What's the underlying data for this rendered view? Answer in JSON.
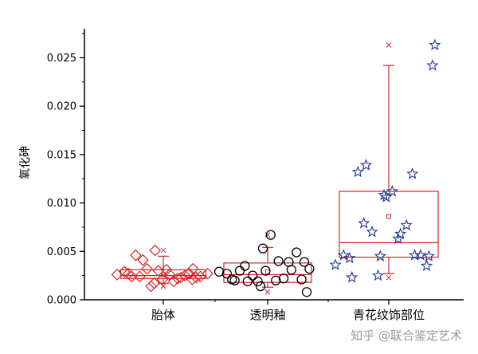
{
  "chart_data": {
    "type": "box",
    "ylabel": "氧化砷",
    "xlabel": "",
    "title": "",
    "ylim": [
      0,
      0.028
    ],
    "yticks": [
      "0.000",
      "0.005",
      "0.010",
      "0.015",
      "0.020",
      "0.025"
    ],
    "categories": [
      "胎体",
      "透明釉",
      "青花纹饰部位"
    ],
    "colors": {
      "box": "#d62728",
      "points": "#000000",
      "stars": "#1f3a93"
    },
    "groups": [
      {
        "category": "胎体",
        "marker": "diamond",
        "box": {
          "q1": 0.0022,
          "median": 0.0025,
          "q3": 0.0031,
          "whisker_low": 0.0017,
          "whisker_high": 0.0045,
          "mean": 0.0026,
          "min": 0.0014,
          "max": 0.0051
        },
        "points": [
          0.0026,
          0.0029,
          0.0024,
          0.0027,
          0.0046,
          0.0041,
          0.0024,
          0.0032,
          0.0017,
          0.0014,
          0.003,
          0.0051,
          0.0021,
          0.0026,
          0.0031,
          0.0019,
          0.0023,
          0.0022,
          0.0025,
          0.0021,
          0.0027,
          0.0023,
          0.0032,
          0.0024,
          0.0027
        ]
      },
      {
        "category": "透明釉",
        "marker": "circle",
        "box": {
          "q1": 0.0018,
          "median": 0.0026,
          "q3": 0.0038,
          "whisker_low": 0.0013,
          "whisker_high": 0.0054,
          "mean": 0.0029,
          "min": 0.0008,
          "max": 0.0067
        },
        "points": [
          0.0029,
          0.0027,
          0.002,
          0.0021,
          0.003,
          0.0019,
          0.0035,
          0.0025,
          0.0014,
          0.0019,
          0.003,
          0.0053,
          0.0067,
          0.004,
          0.002,
          0.0022,
          0.0031,
          0.0039,
          0.0049,
          0.0039,
          0.0021,
          0.0032,
          0.0008
        ]
      },
      {
        "category": "青花纹饰部位",
        "marker": "star",
        "box": {
          "q1": 0.0044,
          "median": 0.0059,
          "q3": 0.0112,
          "whisker_low": 0.0027,
          "whisker_high": 0.0242,
          "mean": 0.0086,
          "min": 0.0023,
          "max": 0.0263
        },
        "points": [
          0.0036,
          0.0046,
          0.0023,
          0.0043,
          0.0132,
          0.0139,
          0.0079,
          0.007,
          0.0045,
          0.0025,
          0.0106,
          0.0108,
          0.0112,
          0.0068,
          0.0063,
          0.0077,
          0.0046,
          0.013,
          0.0046,
          0.0045,
          0.0035,
          0.0263,
          0.0242
        ]
      }
    ]
  },
  "watermark": {
    "text": "知乎 @联合鉴定艺术"
  }
}
